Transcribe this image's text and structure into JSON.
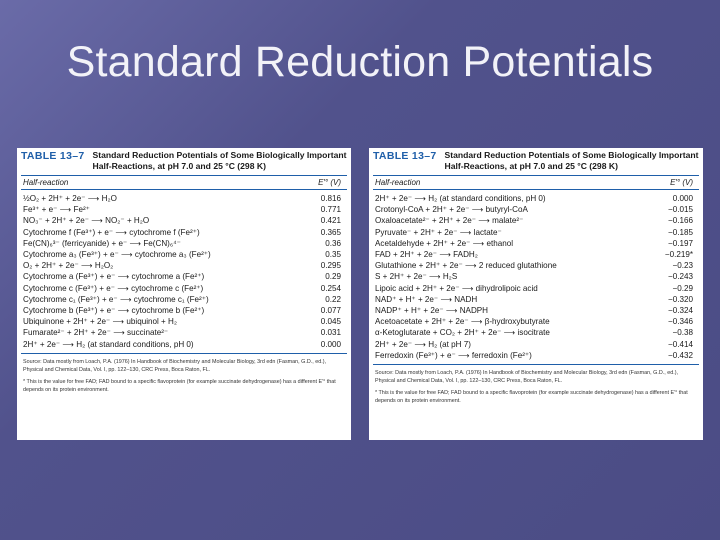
{
  "slide": {
    "title": "Standard Reduction Potentials"
  },
  "left_table": {
    "label": "TABLE 13–7",
    "caption": "Standard Reduction Potentials of Some Biologically Important Half-Reactions, at pH 7.0 and 25 °C (298 K)",
    "col_half_reaction": "Half-reaction",
    "col_value": "E′° (V)",
    "rows": [
      {
        "reaction": "½O₂ + 2H⁺ + 2e⁻ ⟶ H₂O",
        "value": "0.816"
      },
      {
        "reaction": "Fe³⁺ + e⁻ ⟶ Fe²⁺",
        "value": "0.771"
      },
      {
        "reaction": "NO₃⁻ + 2H⁺ + 2e⁻ ⟶ NO₂⁻ + H₂O",
        "value": "0.421"
      },
      {
        "reaction": "Cytochrome f (Fe³⁺) + e⁻ ⟶ cytochrome f (Fe²⁺)",
        "value": "0.365"
      },
      {
        "reaction": "Fe(CN)₆³⁻ (ferricyanide) + e⁻ ⟶ Fe(CN)₆⁴⁻",
        "value": "0.36"
      },
      {
        "reaction": "Cytochrome a₃ (Fe³⁺) + e⁻ ⟶ cytochrome a₃ (Fe²⁺)",
        "value": "0.35"
      },
      {
        "reaction": "O₂ + 2H⁺ + 2e⁻ ⟶ H₂O₂",
        "value": "0.295"
      },
      {
        "reaction": "Cytochrome a (Fe³⁺) + e⁻ ⟶ cytochrome a (Fe²⁺)",
        "value": "0.29"
      },
      {
        "reaction": "Cytochrome c (Fe³⁺) + e⁻ ⟶ cytochrome c (Fe²⁺)",
        "value": "0.254"
      },
      {
        "reaction": "Cytochrome c₁ (Fe³⁺) + e⁻ ⟶ cytochrome c₁ (Fe²⁺)",
        "value": "0.22"
      },
      {
        "reaction": "Cytochrome b (Fe³⁺) + e⁻ ⟶ cytochrome b (Fe²⁺)",
        "value": "0.077"
      },
      {
        "reaction": "Ubiquinone + 2H⁺ + 2e⁻ ⟶ ubiquinol + H₂",
        "value": "0.045"
      },
      {
        "reaction": "Fumarate²⁻ + 2H⁺ + 2e⁻ ⟶ succinate²⁻",
        "value": "0.031"
      },
      {
        "reaction": "2H⁺ + 2e⁻ ⟶ H₂ (at standard conditions, pH 0)",
        "value": "0.000"
      }
    ],
    "source": "Source: Data mostly from Loach, P.A. (1976) In Handbook of Biochemistry and Molecular Biology, 3rd edn (Fasman, G.D., ed.), Physical and Chemical Data, Vol. I, pp. 122–130, CRC Press, Boca Raton, FL.",
    "footnote": "* This is the value for free FAD; FAD bound to a specific flavoprotein (for example succinate dehydrogenase) has a different E′° that depends on its protein environment."
  },
  "right_table": {
    "label": "TABLE 13–7",
    "caption": "Standard Reduction Potentials of Some Biologically Important Half-Reactions, at pH 7.0 and 25 °C (298 K)",
    "col_half_reaction": "Half-reaction",
    "col_value": "E′° (V)",
    "rows": [
      {
        "reaction": "2H⁺ + 2e⁻ ⟶ H₂ (at standard conditions, pH 0)",
        "value": "0.000"
      },
      {
        "reaction": "Crotonyl-CoA + 2H⁺ + 2e⁻ ⟶ butyryl-CoA",
        "value": "−0.015"
      },
      {
        "reaction": "Oxaloacetate²⁻ + 2H⁺ + 2e⁻ ⟶ malate²⁻",
        "value": "−0.166"
      },
      {
        "reaction": "Pyruvate⁻ + 2H⁺ + 2e⁻ ⟶ lactate⁻",
        "value": "−0.185"
      },
      {
        "reaction": "Acetaldehyde + 2H⁺ + 2e⁻ ⟶ ethanol",
        "value": "−0.197"
      },
      {
        "reaction": "FAD + 2H⁺ + 2e⁻ ⟶ FADH₂",
        "value": "−0.219*"
      },
      {
        "reaction": "Glutathione + 2H⁺ + 2e⁻ ⟶ 2 reduced glutathione",
        "value": "−0.23"
      },
      {
        "reaction": "S + 2H⁺ + 2e⁻ ⟶ H₂S",
        "value": "−0.243"
      },
      {
        "reaction": "Lipoic acid + 2H⁺ + 2e⁻ ⟶ dihydrolipoic acid",
        "value": "−0.29"
      },
      {
        "reaction": "NAD⁺ + H⁺ + 2e⁻ ⟶ NADH",
        "value": "−0.320"
      },
      {
        "reaction": "NADP⁺ + H⁺ + 2e⁻ ⟶ NADPH",
        "value": "−0.324"
      },
      {
        "reaction": "Acetoacetate + 2H⁺ + 2e⁻ ⟶ β-hydroxybutyrate",
        "value": "−0.346"
      },
      {
        "reaction": "α-Ketoglutarate + CO₂ + 2H⁺ + 2e⁻ ⟶ isocitrate",
        "value": "−0.38"
      },
      {
        "reaction": "2H⁺ + 2e⁻ ⟶ H₂ (at pH 7)",
        "value": "−0.414"
      },
      {
        "reaction": "Ferredoxin (Fe³⁺) + e⁻ ⟶ ferredoxin (Fe²⁺)",
        "value": "−0.432"
      }
    ],
    "source": "Source: Data mostly from Loach, P.A. (1976) In Handbook of Biochemistry and Molecular Biology, 3rd edn (Fasman, G.D., ed.), Physical and Chemical Data, Vol. I, pp. 122–130, CRC Press, Boca Raton, FL.",
    "footnote": "* This is the value for free FAD; FAD bound to a specific flavoprotein (for example succinate dehydrogenase) has a different E′° that depends on its protein environment."
  }
}
